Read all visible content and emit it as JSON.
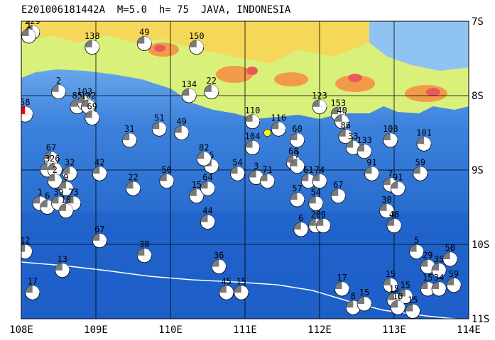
{
  "header": {
    "title": "E201006181442A  M=5.0  h= 75  JAVA, INDONESIA"
  },
  "map": {
    "projection": "lon-lat",
    "lon_range": [
      108,
      114
    ],
    "lat_range": [
      -7,
      -11
    ],
    "lon_labels": [
      "108E",
      "109E",
      "110E",
      "111E",
      "112E",
      "113E",
      "114E"
    ],
    "lat_labels": [
      "7S",
      "8S",
      "9S",
      "10S",
      "11S"
    ],
    "colors": {
      "deep_sea": "#1e5fc8",
      "mid_sea": "#3c82dc",
      "shallow_sea": "#8fc3f2",
      "lowland": "#d9f07a",
      "upland": "#f5d85a",
      "highland": "#f29a4a",
      "peak": "#e85a5a",
      "grid": "#000000",
      "trench": "#ffffff",
      "event_fill": "#ff0000",
      "station": "#ffff00"
    },
    "event": {
      "lon": 108.05,
      "lat": -8.25,
      "label": "58"
    },
    "station": {
      "lon": 111.3,
      "lat": -8.5
    },
    "mechanisms": [
      {
        "lon": 108.15,
        "lat": -7.15,
        "label": "229"
      },
      {
        "lon": 108.1,
        "lat": -7.2,
        "label": "1"
      },
      {
        "lon": 108.95,
        "lat": -7.35,
        "label": "138"
      },
      {
        "lon": 109.65,
        "lat": -7.3,
        "label": "49"
      },
      {
        "lon": 110.35,
        "lat": -7.35,
        "label": "150"
      },
      {
        "lon": 108.5,
        "lat": -7.95,
        "label": "2"
      },
      {
        "lon": 108.75,
        "lat": -8.15,
        "label": "85"
      },
      {
        "lon": 108.85,
        "lat": -8.1,
        "label": "103"
      },
      {
        "lon": 108.9,
        "lat": -8.15,
        "label": "102"
      },
      {
        "lon": 108.95,
        "lat": -8.3,
        "label": "69"
      },
      {
        "lon": 110.25,
        "lat": -8.0,
        "label": "134"
      },
      {
        "lon": 110.55,
        "lat": -7.95,
        "label": "22"
      },
      {
        "lon": 109.45,
        "lat": -8.6,
        "label": "31"
      },
      {
        "lon": 109.85,
        "lat": -8.45,
        "label": "51"
      },
      {
        "lon": 110.15,
        "lat": -8.5,
        "label": "49"
      },
      {
        "lon": 111.1,
        "lat": -8.35,
        "label": "110"
      },
      {
        "lon": 111.45,
        "lat": -8.45,
        "label": "116"
      },
      {
        "lon": 111.7,
        "lat": -8.6,
        "label": "60"
      },
      {
        "lon": 111.1,
        "lat": -8.7,
        "label": "104"
      },
      {
        "lon": 112.0,
        "lat": -8.15,
        "label": "123"
      },
      {
        "lon": 112.25,
        "lat": -8.25,
        "label": "153"
      },
      {
        "lon": 112.3,
        "lat": -8.35,
        "label": "40"
      },
      {
        "lon": 112.35,
        "lat": -8.55,
        "label": "86"
      },
      {
        "lon": 112.45,
        "lat": -8.7,
        "label": "33"
      },
      {
        "lon": 112.6,
        "lat": -8.75,
        "label": "133"
      },
      {
        "lon": 112.95,
        "lat": -8.6,
        "label": "108"
      },
      {
        "lon": 113.4,
        "lat": -8.65,
        "label": "101"
      },
      {
        "lon": 113.35,
        "lat": -9.05,
        "label": "59"
      },
      {
        "lon": 108.4,
        "lat": -8.85,
        "label": "67"
      },
      {
        "lon": 108.35,
        "lat": -9.0,
        "label": "3"
      },
      {
        "lon": 108.45,
        "lat": -9.0,
        "label": "26"
      },
      {
        "lon": 108.65,
        "lat": -9.05,
        "label": "32"
      },
      {
        "lon": 109.05,
        "lat": -9.05,
        "label": "42"
      },
      {
        "lon": 108.45,
        "lat": -9.15,
        "label": "2"
      },
      {
        "lon": 108.6,
        "lat": -9.25,
        "label": "9"
      },
      {
        "lon": 108.25,
        "lat": -9.45,
        "label": "1"
      },
      {
        "lon": 108.35,
        "lat": -9.5,
        "label": "6"
      },
      {
        "lon": 108.5,
        "lat": -9.45,
        "label": "39"
      },
      {
        "lon": 108.7,
        "lat": -9.45,
        "label": "73"
      },
      {
        "lon": 108.6,
        "lat": -9.55,
        "label": "10"
      },
      {
        "lon": 109.5,
        "lat": -9.25,
        "label": "22"
      },
      {
        "lon": 109.95,
        "lat": -9.15,
        "label": "50"
      },
      {
        "lon": 110.35,
        "lat": -9.35,
        "label": "15"
      },
      {
        "lon": 110.55,
        "lat": -8.95,
        "label": "6"
      },
      {
        "lon": 110.45,
        "lat": -8.85,
        "label": "82"
      },
      {
        "lon": 110.5,
        "lat": -9.25,
        "label": "64"
      },
      {
        "lon": 110.5,
        "lat": -9.7,
        "label": "44"
      },
      {
        "lon": 110.9,
        "lat": -9.05,
        "label": "54"
      },
      {
        "lon": 111.15,
        "lat": -9.1,
        "label": "3"
      },
      {
        "lon": 111.3,
        "lat": -9.15,
        "label": "71"
      },
      {
        "lon": 111.65,
        "lat": -8.9,
        "label": "68"
      },
      {
        "lon": 111.7,
        "lat": -8.95,
        "label": "7"
      },
      {
        "lon": 111.85,
        "lat": -9.15,
        "label": "61"
      },
      {
        "lon": 112.0,
        "lat": -9.15,
        "label": "74"
      },
      {
        "lon": 111.7,
        "lat": -9.4,
        "label": "57"
      },
      {
        "lon": 111.95,
        "lat": -9.45,
        "label": "54"
      },
      {
        "lon": 112.25,
        "lat": -9.35,
        "label": "67"
      },
      {
        "lon": 112.7,
        "lat": -9.05,
        "label": "91"
      },
      {
        "lon": 112.95,
        "lat": -9.2,
        "label": "7"
      },
      {
        "lon": 113.05,
        "lat": -9.25,
        "label": "91"
      },
      {
        "lon": 112.9,
        "lat": -9.55,
        "label": "30"
      },
      {
        "lon": 113.0,
        "lat": -9.75,
        "label": "48"
      },
      {
        "lon": 111.75,
        "lat": -9.8,
        "label": "6"
      },
      {
        "lon": 111.95,
        "lat": -9.75,
        "label": "20"
      },
      {
        "lon": 112.05,
        "lat": -9.75,
        "label": "9"
      },
      {
        "lon": 108.05,
        "lat": -10.1,
        "label": "12"
      },
      {
        "lon": 108.55,
        "lat": -10.35,
        "label": "13"
      },
      {
        "lon": 109.05,
        "lat": -9.95,
        "label": "67"
      },
      {
        "lon": 109.65,
        "lat": -10.15,
        "label": "38"
      },
      {
        "lon": 110.65,
        "lat": -10.3,
        "label": "36"
      },
      {
        "lon": 110.75,
        "lat": -10.65,
        "label": "45"
      },
      {
        "lon": 110.95,
        "lat": -10.65,
        "label": "15"
      },
      {
        "lon": 108.15,
        "lat": -10.65,
        "label": "17"
      },
      {
        "lon": 112.3,
        "lat": -10.6,
        "label": "17"
      },
      {
        "lon": 112.45,
        "lat": -10.85,
        "label": "8"
      },
      {
        "lon": 112.6,
        "lat": -10.8,
        "label": "15"
      },
      {
        "lon": 112.95,
        "lat": -10.55,
        "label": "15"
      },
      {
        "lon": 113.0,
        "lat": -10.75,
        "label": "15"
      },
      {
        "lon": 113.15,
        "lat": -10.7,
        "label": "15"
      },
      {
        "lon": 113.05,
        "lat": -10.85,
        "label": "10"
      },
      {
        "lon": 113.25,
        "lat": -10.9,
        "label": "15"
      },
      {
        "lon": 113.45,
        "lat": -10.3,
        "label": "29"
      },
      {
        "lon": 113.6,
        "lat": -10.35,
        "label": "35"
      },
      {
        "lon": 113.75,
        "lat": -10.2,
        "label": "50"
      },
      {
        "lon": 113.8,
        "lat": -10.55,
        "label": "59"
      },
      {
        "lon": 113.45,
        "lat": -10.6,
        "label": "15"
      },
      {
        "lon": 113.6,
        "lat": -10.6,
        "label": "34"
      },
      {
        "lon": 113.3,
        "lat": -10.1,
        "label": "5"
      }
    ]
  }
}
